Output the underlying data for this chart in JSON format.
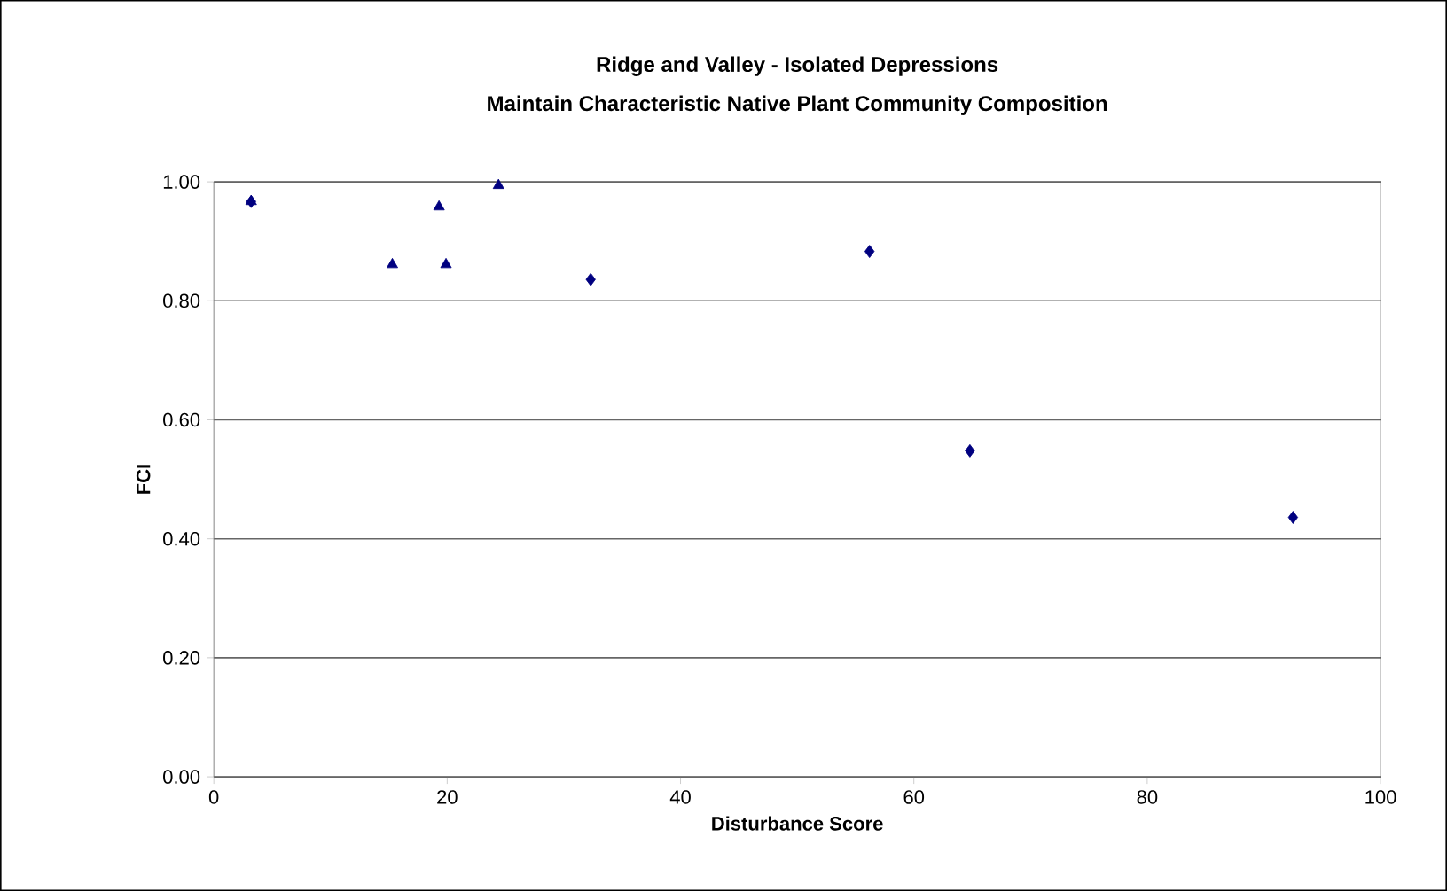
{
  "chart_data": {
    "type": "scatter",
    "title": "Ridge and Valley - Isolated Depressions",
    "subtitle": "Maintain Characteristic Native Plant Community Composition",
    "xlabel": "Disturbance Score",
    "ylabel": "FCI",
    "xlim": [
      0,
      100
    ],
    "xticks": [
      0,
      20,
      40,
      60,
      80,
      100
    ],
    "ylim": [
      0,
      1
    ],
    "yticks": [
      {
        "value": 0,
        "label": "0.00"
      },
      {
        "value": 0.2,
        "label": "0.20"
      },
      {
        "value": 0.4,
        "label": "0.40"
      },
      {
        "value": 0.6,
        "label": "0.60"
      },
      {
        "value": 0.8,
        "label": "0.80"
      },
      {
        "value": 1,
        "label": "1.00"
      }
    ],
    "grid": "y",
    "series": [
      {
        "color": "#000080",
        "marker": "diamond",
        "x": [
          3.2,
          32.3,
          56.2,
          64.8,
          92.5
        ],
        "values": [
          0.967,
          0.836,
          0.883,
          0.548,
          0.436
        ]
      },
      {
        "color": "#000080",
        "marker": "triangle",
        "x": [
          3.2,
          15.3,
          19.3,
          19.9,
          24.4
        ],
        "values": [
          0.967,
          0.861,
          0.958,
          0.861,
          0.994
        ]
      }
    ]
  }
}
